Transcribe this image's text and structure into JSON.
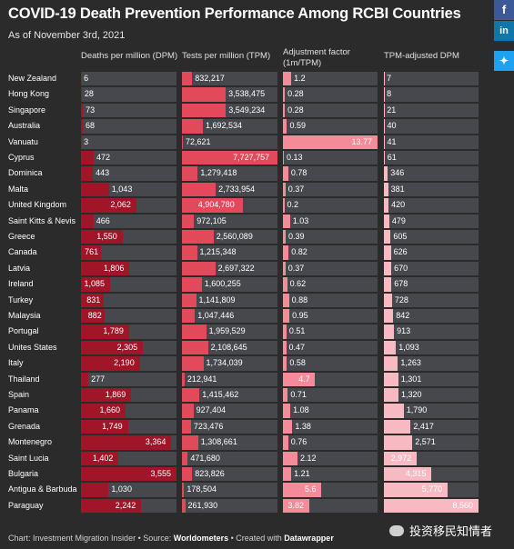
{
  "header": {
    "title": "COVID-19 Death Prevention Performance Among RCBI Countries",
    "subtitle": "As of November 3rd, 2021"
  },
  "share": [
    {
      "icon": "facebook-icon",
      "glyph": "f"
    },
    {
      "icon": "linkedin-icon",
      "glyph": "in"
    },
    {
      "icon": "twitter-icon",
      "glyph": "✦"
    }
  ],
  "columns": {
    "dpm": "Deaths per million (DPM)",
    "tpm": "Tests per million (TPM)",
    "adj_line1": "Adjustment factor",
    "adj_line2": "(1m/TPM)",
    "adjdpm": "TPM-adjusted DPM"
  },
  "chart_data": {
    "type": "table",
    "columns": [
      "Deaths per million (DPM)",
      "Tests per million (TPM)",
      "Adjustment factor (1m/TPM)",
      "TPM-adjusted DPM"
    ],
    "rows": [
      {
        "country": "New Zealand",
        "dpm": 6,
        "dpm_label": "6",
        "tpm": 832217,
        "tpm_label": "832,217",
        "adj": 1.2,
        "adj_label": "1.2",
        "adjdpm": 7,
        "adjdpm_label": "7"
      },
      {
        "country": "Hong Kong",
        "dpm": 28,
        "dpm_label": "28",
        "tpm": 3538475,
        "tpm_label": "3,538,475",
        "adj": 0.28,
        "adj_label": "0.28",
        "adjdpm": 8,
        "adjdpm_label": "8"
      },
      {
        "country": "Singapore",
        "dpm": 73,
        "dpm_label": "73",
        "tpm": 3549234,
        "tpm_label": "3,549,234",
        "adj": 0.28,
        "adj_label": "0.28",
        "adjdpm": 21,
        "adjdpm_label": "21"
      },
      {
        "country": "Australia",
        "dpm": 68,
        "dpm_label": "68",
        "tpm": 1692534,
        "tpm_label": "1,692,534",
        "adj": 0.59,
        "adj_label": "0.59",
        "adjdpm": 40,
        "adjdpm_label": "40"
      },
      {
        "country": "Vanuatu",
        "dpm": 3,
        "dpm_label": "3",
        "tpm": 72621,
        "tpm_label": "72,621",
        "adj": 13.77,
        "adj_label": "13.77",
        "adjdpm": 41,
        "adjdpm_label": "41"
      },
      {
        "country": "Cyprus",
        "dpm": 472,
        "dpm_label": "472",
        "tpm": 7727757,
        "tpm_label": "7,727,757",
        "adj": 0.13,
        "adj_label": "0.13",
        "adjdpm": 61,
        "adjdpm_label": "61"
      },
      {
        "country": "Dominica",
        "dpm": 443,
        "dpm_label": "443",
        "tpm": 1279418,
        "tpm_label": "1,279,418",
        "adj": 0.78,
        "adj_label": "0.78",
        "adjdpm": 346,
        "adjdpm_label": "346"
      },
      {
        "country": "Malta",
        "dpm": 1043,
        "dpm_label": "1,043",
        "tpm": 2733954,
        "tpm_label": "2,733,954",
        "adj": 0.37,
        "adj_label": "0.37",
        "adjdpm": 381,
        "adjdpm_label": "381"
      },
      {
        "country": "United Kingdom",
        "dpm": 2062,
        "dpm_label": "2,062",
        "tpm": 4904780,
        "tpm_label": "4,904,780",
        "adj": 0.2,
        "adj_label": "0.2",
        "adjdpm": 420,
        "adjdpm_label": "420"
      },
      {
        "country": "Saint Kitts & Nevis",
        "dpm": 466,
        "dpm_label": "466",
        "tpm": 972105,
        "tpm_label": "972,105",
        "adj": 1.03,
        "adj_label": "1.03",
        "adjdpm": 479,
        "adjdpm_label": "479"
      },
      {
        "country": "Greece",
        "dpm": 1550,
        "dpm_label": "1,550",
        "tpm": 2560089,
        "tpm_label": "2,560,089",
        "adj": 0.39,
        "adj_label": "0.39",
        "adjdpm": 605,
        "adjdpm_label": "605"
      },
      {
        "country": "Canada",
        "dpm": 761,
        "dpm_label": "761",
        "tpm": 1215348,
        "tpm_label": "1,215,348",
        "adj": 0.82,
        "adj_label": "0.82",
        "adjdpm": 626,
        "adjdpm_label": "626"
      },
      {
        "country": "Latvia",
        "dpm": 1806,
        "dpm_label": "1,806",
        "tpm": 2697322,
        "tpm_label": "2,697,322",
        "adj": 0.37,
        "adj_label": "0.37",
        "adjdpm": 670,
        "adjdpm_label": "670"
      },
      {
        "country": "Ireland",
        "dpm": 1085,
        "dpm_label": "1,085",
        "tpm": 1600255,
        "tpm_label": "1,600,255",
        "adj": 0.62,
        "adj_label": "0.62",
        "adjdpm": 678,
        "adjdpm_label": "678"
      },
      {
        "country": "Turkey",
        "dpm": 831,
        "dpm_label": "831",
        "tpm": 1141809,
        "tpm_label": "1,141,809",
        "adj": 0.88,
        "adj_label": "0.88",
        "adjdpm": 728,
        "adjdpm_label": "728"
      },
      {
        "country": "Malaysia",
        "dpm": 882,
        "dpm_label": "882",
        "tpm": 1047446,
        "tpm_label": "1,047,446",
        "adj": 0.95,
        "adj_label": "0.95",
        "adjdpm": 842,
        "adjdpm_label": "842"
      },
      {
        "country": "Portugal",
        "dpm": 1789,
        "dpm_label": "1,789",
        "tpm": 1959529,
        "tpm_label": "1,959,529",
        "adj": 0.51,
        "adj_label": "0.51",
        "adjdpm": 913,
        "adjdpm_label": "913"
      },
      {
        "country": "Unites States",
        "dpm": 2305,
        "dpm_label": "2,305",
        "tpm": 2108645,
        "tpm_label": "2,108,645",
        "adj": 0.47,
        "adj_label": "0.47",
        "adjdpm": 1093,
        "adjdpm_label": "1,093"
      },
      {
        "country": "Italy",
        "dpm": 2190,
        "dpm_label": "2,190",
        "tpm": 1734039,
        "tpm_label": "1,734,039",
        "adj": 0.58,
        "adj_label": "0.58",
        "adjdpm": 1263,
        "adjdpm_label": "1,263"
      },
      {
        "country": "Thailand",
        "dpm": 277,
        "dpm_label": "277",
        "tpm": 212941,
        "tpm_label": "212,941",
        "adj": 4.7,
        "adj_label": "4.7",
        "adjdpm": 1301,
        "adjdpm_label": "1,301"
      },
      {
        "country": "Spain",
        "dpm": 1869,
        "dpm_label": "1,869",
        "tpm": 1415462,
        "tpm_label": "1,415,462",
        "adj": 0.71,
        "adj_label": "0.71",
        "adjdpm": 1320,
        "adjdpm_label": "1,320"
      },
      {
        "country": "Panama",
        "dpm": 1660,
        "dpm_label": "1,660",
        "tpm": 927404,
        "tpm_label": "927,404",
        "adj": 1.08,
        "adj_label": "1.08",
        "adjdpm": 1790,
        "adjdpm_label": "1,790"
      },
      {
        "country": "Grenada",
        "dpm": 1749,
        "dpm_label": "1,749",
        "tpm": 723476,
        "tpm_label": "723,476",
        "adj": 1.38,
        "adj_label": "1.38",
        "adjdpm": 2417,
        "adjdpm_label": "2,417"
      },
      {
        "country": "Montenegro",
        "dpm": 3364,
        "dpm_label": "3,364",
        "tpm": 1308661,
        "tpm_label": "1,308,661",
        "adj": 0.76,
        "adj_label": "0.76",
        "adjdpm": 2571,
        "adjdpm_label": "2,571"
      },
      {
        "country": "Saint Lucia",
        "dpm": 1402,
        "dpm_label": "1,402",
        "tpm": 471680,
        "tpm_label": "471,680",
        "adj": 2.12,
        "adj_label": "2.12",
        "adjdpm": 2972,
        "adjdpm_label": "2,972"
      },
      {
        "country": "Bulgaria",
        "dpm": 3555,
        "dpm_label": "3,555",
        "tpm": 823826,
        "tpm_label": "823,826",
        "adj": 1.21,
        "adj_label": "1.21",
        "adjdpm": 4315,
        "adjdpm_label": "4,315"
      },
      {
        "country": "Antigua & Barbuda",
        "dpm": 1030,
        "dpm_label": "1,030",
        "tpm": 178504,
        "tpm_label": "178,504",
        "adj": 5.6,
        "adj_label": "5.6",
        "adjdpm": 5770,
        "adjdpm_label": "5,770"
      },
      {
        "country": "Paraguay",
        "dpm": 2242,
        "dpm_label": "2,242",
        "tpm": 261930,
        "tpm_label": "261,930",
        "adj": 3.82,
        "adj_label": "3.82",
        "adjdpm": 8560,
        "adjdpm_label": "8,560"
      }
    ],
    "colors": {
      "dpm": "#a01628",
      "tpm": "#e24a5c",
      "adj": "#f58a98",
      "adjdpm": "#f7b9c2",
      "cell_bg": "#46484e"
    }
  },
  "footer": {
    "chart_prefix": "Chart: ",
    "chart_source": "Investment Migration Insider",
    "source_prefix": " • Source: ",
    "source_name": "Worldometers",
    "created_prefix": " • Created with ",
    "created_tool": "Datawrapper"
  },
  "watermark": {
    "text": "投资移民知情者"
  }
}
